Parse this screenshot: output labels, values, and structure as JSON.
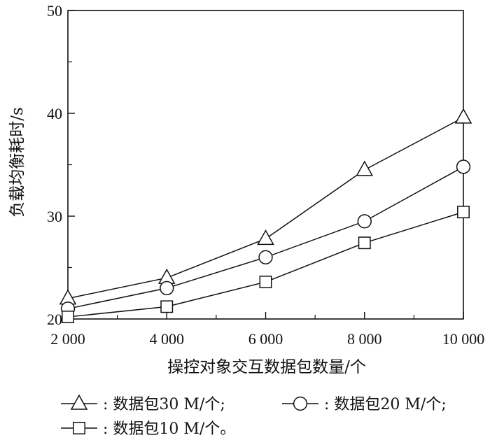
{
  "chart_data": {
    "type": "line",
    "x": [
      2000,
      4000,
      6000,
      8000,
      10000
    ],
    "x_tick_labels": [
      "2 000",
      "4 000",
      "6 000",
      "8 000",
      "10 000"
    ],
    "y_tick_labels": [
      "20",
      "30",
      "40",
      "50"
    ],
    "xlim": [
      2000,
      10000
    ],
    "ylim": [
      20,
      50
    ],
    "xlabel": "操控对象交互数据包数量/个",
    "ylabel": "负载均衡耗时/s",
    "grid": false,
    "legend_position": "bottom",
    "series": [
      {
        "name": "数据包30 M/个",
        "legend_label": ": 数据包30 M/个;",
        "marker": "triangle",
        "values": [
          22.0,
          24.0,
          27.8,
          34.5,
          39.6
        ]
      },
      {
        "name": "数据包20 M/个",
        "legend_label": ": 数据包20 M/个;",
        "marker": "circle",
        "values": [
          21.0,
          23.0,
          26.0,
          29.5,
          34.8
        ]
      },
      {
        "name": "数据包10 M/个",
        "legend_label": ": 数据包10 M/个。",
        "marker": "square",
        "values": [
          20.2,
          21.2,
          23.6,
          27.4,
          30.4
        ]
      }
    ],
    "colors": {
      "line": "#111111",
      "background": "#ffffff"
    }
  }
}
